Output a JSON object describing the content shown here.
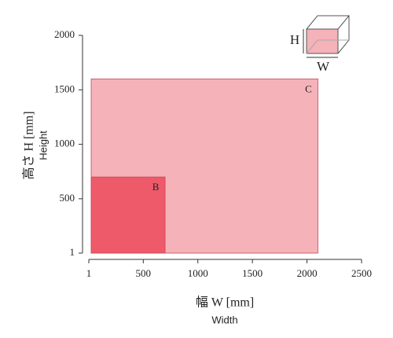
{
  "chart_data": {
    "type": "rect",
    "x_label": "幅 W [mm]",
    "x_sublabel": "Width",
    "y_label": "高さ H [mm]",
    "y_sublabel": "Height",
    "series": [
      {
        "name": "C",
        "color": "#f5b2b9",
        "width": 2100,
        "height": 1600
      },
      {
        "name": "B",
        "color": "#ee5a6a",
        "width": 700,
        "height": 700
      }
    ],
    "xlim": [
      1,
      2500
    ],
    "xticks": [
      1,
      500,
      1000,
      1500,
      2000,
      2500
    ],
    "ylim": [
      1,
      2000
    ],
    "yticks": [
      1,
      500,
      1000,
      1500,
      2000
    ],
    "inset": {
      "h_label": "H",
      "w_label": "W"
    }
  }
}
